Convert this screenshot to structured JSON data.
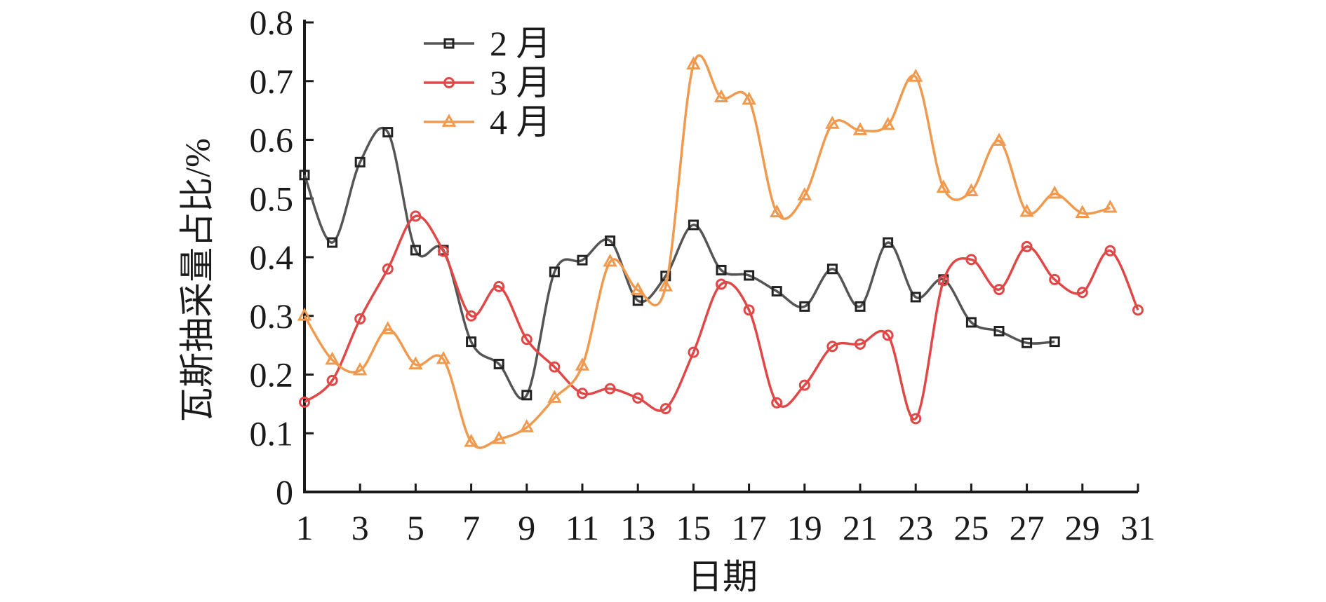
{
  "chart_data": {
    "type": "line",
    "xlabel": "日期",
    "ylabel": "瓦斯抽采量占比/%",
    "xlim": [
      1,
      31
    ],
    "ylim": [
      0,
      0.8
    ],
    "x_ticks": [
      1,
      3,
      5,
      7,
      9,
      11,
      13,
      15,
      17,
      19,
      21,
      23,
      25,
      27,
      29,
      31
    ],
    "y_ticks": [
      0,
      0.1,
      0.2,
      0.3,
      0.4,
      0.5,
      0.6,
      0.7,
      0.8
    ],
    "y_tick_labels": [
      "0",
      "0.1",
      "0.2",
      "0.3",
      "0.4",
      "0.5",
      "0.6",
      "0.7",
      "0.8"
    ],
    "grid": false,
    "legend_position": "top-left",
    "series": [
      {
        "name": "2 月",
        "color": "#555555",
        "marker": "square",
        "x": [
          1,
          2,
          3,
          4,
          5,
          6,
          7,
          8,
          9,
          10,
          11,
          12,
          13,
          14,
          15,
          16,
          17,
          18,
          19,
          20,
          21,
          22,
          23,
          24,
          25,
          26,
          27,
          28
        ],
        "values": [
          0.54,
          0.425,
          0.562,
          0.613,
          0.412,
          0.412,
          0.256,
          0.218,
          0.165,
          0.375,
          0.395,
          0.428,
          0.326,
          0.368,
          0.455,
          0.378,
          0.369,
          0.342,
          0.316,
          0.38,
          0.316,
          0.425,
          0.332,
          0.362,
          0.289,
          0.274,
          0.254,
          0.256
        ]
      },
      {
        "name": "3 月",
        "color": "#e04848",
        "marker": "circle",
        "x": [
          1,
          2,
          3,
          4,
          5,
          6,
          7,
          8,
          9,
          10,
          11,
          12,
          13,
          14,
          15,
          16,
          17,
          18,
          19,
          20,
          21,
          22,
          23,
          24,
          25,
          26,
          27,
          28,
          29,
          30,
          31
        ],
        "values": [
          0.153,
          0.19,
          0.295,
          0.38,
          0.47,
          0.41,
          0.3,
          0.35,
          0.26,
          0.213,
          0.168,
          0.176,
          0.16,
          0.142,
          0.238,
          0.354,
          0.31,
          0.152,
          0.182,
          0.248,
          0.252,
          0.267,
          0.125,
          0.36,
          0.396,
          0.345,
          0.418,
          0.362,
          0.34,
          0.411,
          0.31
        ]
      },
      {
        "name": "4 月",
        "color": "#f09a50",
        "marker": "triangle",
        "x": [
          1,
          2,
          3,
          4,
          5,
          6,
          7,
          8,
          9,
          10,
          11,
          12,
          13,
          14,
          15,
          16,
          17,
          18,
          19,
          20,
          21,
          22,
          23,
          24,
          25,
          26,
          27,
          28,
          29,
          30
        ],
        "values": [
          0.3,
          0.225,
          0.207,
          0.277,
          0.217,
          0.226,
          0.085,
          0.09,
          0.11,
          0.16,
          0.215,
          0.392,
          0.344,
          0.35,
          0.728,
          0.672,
          0.668,
          0.476,
          0.505,
          0.627,
          0.616,
          0.625,
          0.707,
          0.518,
          0.512,
          0.598,
          0.477,
          0.508,
          0.475,
          0.484
        ]
      }
    ]
  }
}
